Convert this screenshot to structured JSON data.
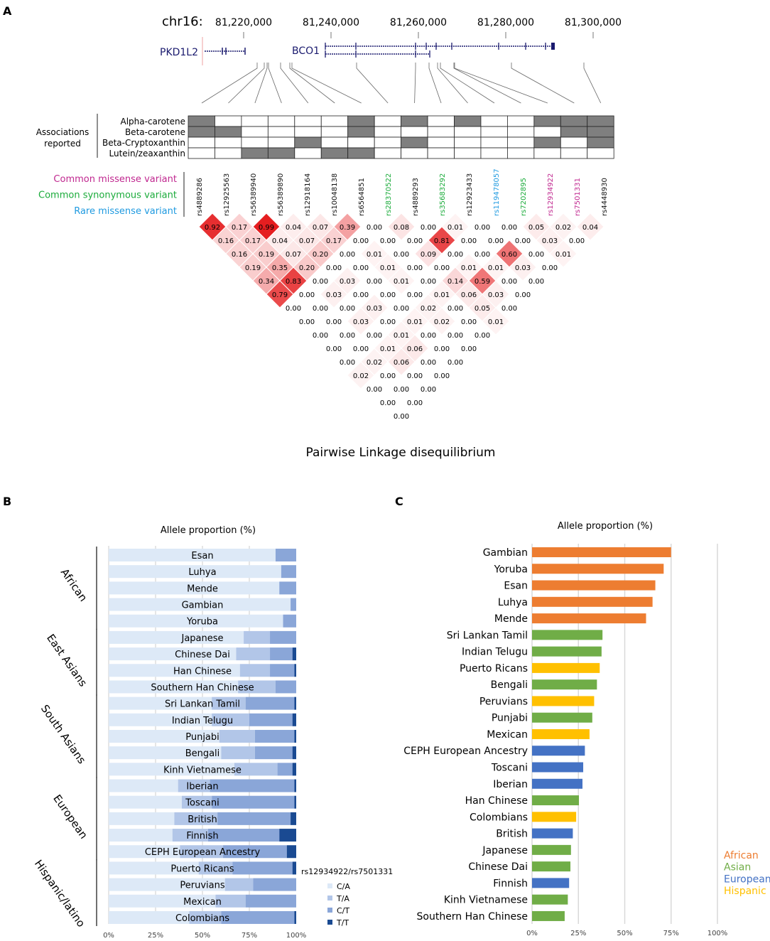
{
  "panel_labels": {
    "a": "A",
    "b": "B",
    "c": "C"
  },
  "chart_data": [
    {
      "type": "diagram",
      "panel": "A",
      "chromosome_label": "chr16:",
      "coordinate_ticks": [
        "81,220,000",
        "81,240,000",
        "81,260,000",
        "81,280,000",
        "81,300,000"
      ],
      "genes": [
        "PKD1L2",
        "BCO1"
      ],
      "gene_color": "#1a1a6e",
      "associations_label": [
        "Associations",
        "reported"
      ],
      "traits": [
        "Alpha-carotene",
        "Beta-carotene",
        "Beta-Cryptoxanthin",
        "Lutein/zeaxanthin"
      ],
      "association_matrix": [
        [
          1,
          0,
          0,
          0,
          0,
          0,
          1,
          0,
          1,
          0,
          1,
          0,
          0,
          1,
          1,
          1
        ],
        [
          1,
          1,
          0,
          0,
          0,
          0,
          1,
          0,
          0,
          0,
          0,
          0,
          0,
          0,
          1,
          1
        ],
        [
          0,
          0,
          0,
          0,
          1,
          0,
          0,
          0,
          1,
          0,
          0,
          0,
          0,
          1,
          0,
          1
        ],
        [
          0,
          0,
          1,
          1,
          0,
          1,
          1,
          0,
          0,
          0,
          0,
          0,
          0,
          0,
          0,
          0
        ]
      ],
      "variant_legend": [
        {
          "label": "Common missense variant",
          "color": "#c0278f"
        },
        {
          "label": "Common synonymous variant",
          "color": "#1aab3a"
        },
        {
          "label": "Rare missense variant",
          "color": "#1f9ae0"
        }
      ],
      "snps": [
        {
          "id": "rs4889286",
          "type": "none"
        },
        {
          "id": "rs12925563",
          "type": "none"
        },
        {
          "id": "rs56389940",
          "type": "none"
        },
        {
          "id": "rs56389890",
          "type": "none"
        },
        {
          "id": "rs12918164",
          "type": "none"
        },
        {
          "id": "rs10048138",
          "type": "none"
        },
        {
          "id": "rs6564851",
          "type": "none"
        },
        {
          "id": "rs28370522",
          "type": "synonymous"
        },
        {
          "id": "rs4889293",
          "type": "none"
        },
        {
          "id": "rs35683292",
          "type": "synonymous"
        },
        {
          "id": "rs12923433",
          "type": "none"
        },
        {
          "id": "rs119478057",
          "type": "rare"
        },
        {
          "id": "rs7202895",
          "type": "synonymous"
        },
        {
          "id": "rs12934922",
          "type": "missense"
        },
        {
          "id": "rs7501331",
          "type": "missense"
        },
        {
          "id": "rs4448930",
          "type": "none"
        }
      ]
    },
    {
      "type": "heatmap",
      "panel": "A",
      "title": "Pairwise Linkage disequilibrium",
      "ld_color": "#e41a1c",
      "ld_by_distance": [
        [
          0.92,
          0.17,
          0.99,
          0.04,
          0.07,
          0.39,
          0.0,
          0.08,
          0.0,
          0.01,
          0.0,
          0.0,
          0.05,
          0.02,
          0.04
        ],
        [
          0.16,
          0.17,
          0.04,
          0.07,
          0.17,
          0.0,
          0.0,
          0.0,
          0.81,
          0.0,
          0.0,
          0.0,
          0.03,
          0.0
        ],
        [
          0.16,
          0.19,
          0.07,
          0.2,
          0.0,
          0.01,
          0.0,
          0.09,
          0.0,
          0.0,
          0.6,
          0.0,
          0.01
        ],
        [
          0.19,
          0.35,
          0.2,
          0.0,
          0.0,
          0.01,
          0.0,
          0.0,
          0.01,
          0.01,
          0.03,
          0.0
        ],
        [
          0.34,
          0.83,
          0.0,
          0.03,
          0.0,
          0.01,
          0.0,
          0.14,
          0.59,
          0.0,
          0.0
        ],
        [
          0.79,
          0.0,
          0.03,
          0.0,
          0.0,
          0.0,
          0.01,
          0.06,
          0.03,
          0.0
        ],
        [
          0.0,
          0.0,
          0.0,
          0.03,
          0.0,
          0.02,
          0.0,
          0.05,
          0.0
        ],
        [
          0.0,
          0.0,
          0.03,
          0.0,
          0.01,
          0.02,
          0.0,
          0.01
        ],
        [
          0.0,
          0.0,
          0.0,
          0.01,
          0.0,
          0.0,
          0.0
        ],
        [
          0.0,
          0.0,
          0.01,
          0.06,
          0.0,
          0.0
        ],
        [
          0.0,
          0.02,
          0.06,
          0.0,
          0.0
        ],
        [
          0.02,
          0.0,
          0.0,
          0.0
        ],
        [
          0.0,
          0.0,
          0.0
        ],
        [
          0.0,
          0.0
        ],
        [
          0.0
        ]
      ]
    },
    {
      "type": "bar",
      "stacked": true,
      "orientation": "horizontal",
      "panel": "B",
      "title": "Allele proportion (%)",
      "xlim": [
        0,
        100
      ],
      "xticks": [
        "0%",
        "25%",
        "50%",
        "75%",
        "100%"
      ],
      "grid": true,
      "legend_title": "rs12934922/rs7501331",
      "legend_position": "right",
      "groups": [
        {
          "name": "African",
          "categories": [
            "Esan",
            "Luhya",
            "Mende",
            "Gambian",
            "Yoruba"
          ]
        },
        {
          "name": "East Asians",
          "categories": [
            "Japanese",
            "Chinese Dai",
            "Han Chinese",
            "Southern Han Chinese"
          ]
        },
        {
          "name": "South Asians",
          "categories": [
            "Sri Lankan Tamil",
            "Indian Telugu",
            "Punjabi",
            "Bengali",
            "Kinh Vietnamese"
          ]
        },
        {
          "name": "European",
          "categories": [
            "Iberian",
            "Toscani",
            "British",
            "Finnish",
            "CEPH European Ancestry"
          ]
        },
        {
          "name": "Hispanic/latino",
          "categories": [
            "Puerto Ricans",
            "Peruvians",
            "Mexican",
            "Colombians"
          ]
        }
      ],
      "categories": [
        "Esan",
        "Luhya",
        "Mende",
        "Gambian",
        "Yoruba",
        "Japanese",
        "Chinese Dai",
        "Han Chinese",
        "Southern Han Chinese",
        "Sri Lankan Tamil",
        "Indian Telugu",
        "Punjabi",
        "Bengali",
        "Kinh Vietnamese",
        "Iberian",
        "Toscani",
        "British",
        "Finnish",
        "CEPH European Ancestry",
        "Puerto Ricans",
        "Peruvians",
        "Mexican",
        "Colombians"
      ],
      "series": [
        {
          "name": "C/A",
          "color": "#dde9f7",
          "values": [
            89,
            92,
            91,
            97,
            93,
            72,
            68,
            70,
            69,
            55,
            55,
            59,
            60,
            67,
            37,
            39,
            35,
            34,
            38,
            48,
            62,
            57,
            43
          ]
        },
        {
          "name": "T/A",
          "color": "#b2c6e8",
          "values": [
            0,
            0,
            0,
            0,
            0,
            14,
            18,
            16,
            20,
            18,
            20,
            19,
            18,
            23,
            17,
            16,
            23,
            19,
            23,
            18,
            15,
            16,
            17
          ]
        },
        {
          "name": "C/T",
          "color": "#8aa6d8",
          "values": [
            11,
            8,
            9,
            3,
            7,
            14,
            12,
            13,
            11,
            26,
            23,
            21,
            20,
            8,
            45,
            44,
            39,
            38,
            34,
            32,
            23,
            27,
            39
          ]
        },
        {
          "name": "T/T",
          "color": "#1a4a92",
          "values": [
            0,
            0,
            0,
            0,
            0,
            0,
            2,
            1,
            0,
            1,
            2,
            1,
            2,
            2,
            1,
            1,
            3,
            9,
            5,
            2,
            0,
            0,
            1
          ]
        }
      ]
    },
    {
      "type": "bar",
      "orientation": "horizontal",
      "panel": "C",
      "title": "Allele proportion (%)",
      "xlim": [
        0,
        100
      ],
      "xticks": [
        "0%",
        "25%",
        "50%",
        "75%",
        "100%"
      ],
      "grid": true,
      "legend_position": "bottom-right",
      "legend": [
        {
          "name": "African",
          "color": "#ed7d31"
        },
        {
          "name": "Asian",
          "color": "#70ad47"
        },
        {
          "name": "European",
          "color": "#4472c4"
        },
        {
          "name": "Hispanic",
          "color": "#ffc000"
        }
      ],
      "categories": [
        "Gambian",
        "Yoruba",
        "Esan",
        "Luhya",
        "Mende",
        "Sri Lankan Tamil",
        "Indian Telugu",
        "Puerto Ricans",
        "Bengali",
        "Peruvians",
        "Punjabi",
        "Mexican",
        "CEPH European Ancestry",
        "Toscani",
        "Iberian",
        "Han Chinese",
        "Colombians",
        "British",
        "Japanese",
        "Chinese Dai",
        "Finnish",
        "Kinh Vietnamese",
        "Southern Han Chinese"
      ],
      "groups": [
        "African",
        "African",
        "African",
        "African",
        "African",
        "Asian",
        "Asian",
        "Hispanic",
        "Asian",
        "Hispanic",
        "Asian",
        "Hispanic",
        "European",
        "European",
        "European",
        "Asian",
        "Hispanic",
        "European",
        "Asian",
        "Asian",
        "European",
        "Asian",
        "Asian"
      ],
      "values": [
        75,
        71,
        66.5,
        65,
        61.5,
        38,
        37.5,
        36.5,
        35,
        33.5,
        32.5,
        31,
        28.5,
        27.6,
        27.2,
        25.3,
        23.8,
        22,
        21,
        20.7,
        20,
        19.3,
        17.6
      ]
    }
  ]
}
